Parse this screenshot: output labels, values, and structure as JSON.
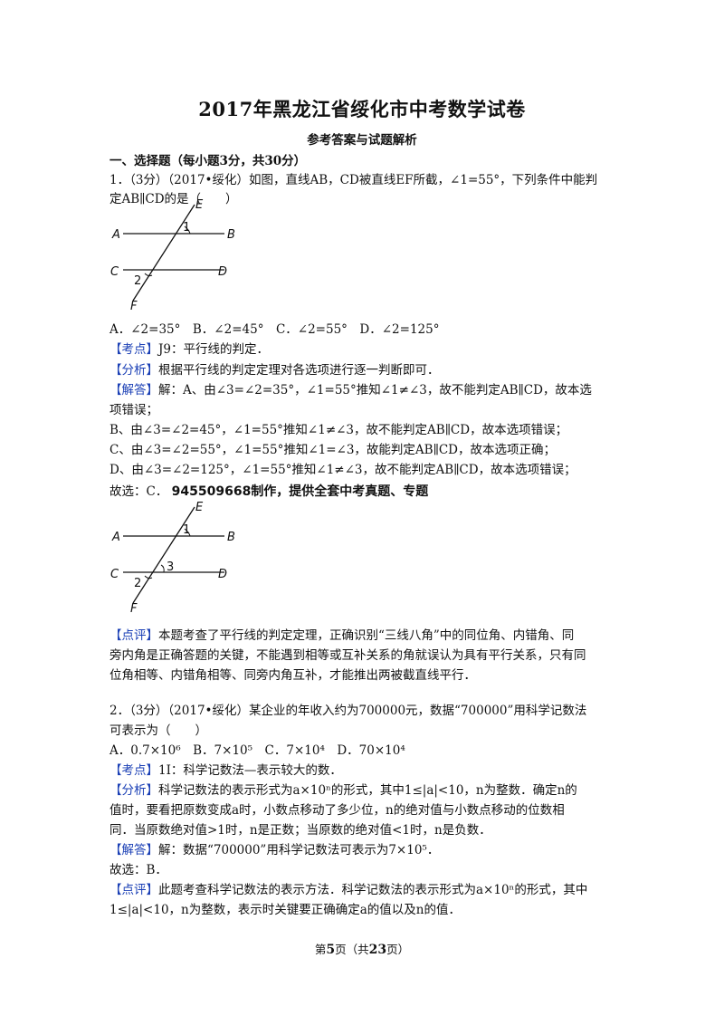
{
  "title": "2017年黑龙江省绥化市中考数学试卷",
  "subtitle": "参考答案与试题解析",
  "section1": "一、选择题（每小题3分，共30分）",
  "q1": {
    "stem_1": "1．（3分）（2017•绥化）如图，直线AB，CD被直线EF所截，∠1=55°，下列条件中能判",
    "stem_2": "定AB∥CD的是（　　）",
    "figure_labels": {
      "A": "A",
      "B": "B",
      "C": "C",
      "D": "D",
      "E": "E",
      "F": "F",
      "one": "1",
      "two": "2",
      "three": "3"
    },
    "options": "A．∠2=35°　B．∠2=45°　C．∠2=55°　D．∠2=125°",
    "kaodian_tag": "【考点】",
    "kaodian": "J9：平行线的判定．",
    "fenxi_tag": "【分析】",
    "fenxi": "根据平行线的判定定理对各选项进行逐一判断即可．",
    "jieda_tag": "【解答】",
    "jieda_1": "解：A、由∠3=∠2=35°，∠1=55°推知∠1≠∠3，故不能判定AB∥CD，故本选",
    "jieda_2": "项错误；",
    "jieda_3": "B、由∠3=∠2=45°，∠1=55°推知∠1≠∠3，故不能判定AB∥CD，故本选项错误；",
    "jieda_4": "C、由∠3=∠2=55°，∠1=55°推知∠1=∠3，故能判定AB∥CD，故本选项正确；",
    "jieda_5": "D、由∠3=∠2=125°，∠1=55°推知∠1≠∠3，故不能判定AB∥CD，故本选项错误；",
    "answer": "故选：C．",
    "watermark": "945509668制作，提供全套中考真题、专题",
    "dianping_tag": "【点评】",
    "dianping_1": "本题考查了平行线的判定定理，正确识别“三线八角”中的同位角、内错角、同",
    "dianping_2": "旁内角是正确答题的关键，不能遇到相等或互补关系的角就误认为具有平行关系，只有同",
    "dianping_3": "位角相等、内错角相等、同旁内角互补，才能推出两被截直线平行．"
  },
  "q2": {
    "stem_1": "2．（3分）（2017•绥化）某企业的年收入约为700000元，数据“700000”用科学记数法",
    "stem_2": "可表示为（　　）",
    "options": "A．0.7×10⁶　B．7×10⁵　C．7×10⁴　D．70×10⁴",
    "kaodian_tag": "【考点】",
    "kaodian": "1I：科学记数法—表示较大的数．",
    "fenxi_tag": "【分析】",
    "fenxi_1": "科学记数法的表示形式为a×10ⁿ的形式，其中1≤|a|<10，n为整数．确定n的",
    "fenxi_2": "值时，要看把原数变成a时，小数点移动了多少位，n的绝对值与小数点移动的位数相",
    "fenxi_3": "同．当原数绝对值>1时，n是正数；当原数的绝对值<1时，n是负数．",
    "jieda_tag": "【解答】",
    "jieda": "解：数据“700000”用科学记数法可表示为7×10⁵．",
    "answer": "故选：B．",
    "dianping_tag": "【点评】",
    "dianping_1": "此题考查科学记数法的表示方法．科学记数法的表示形式为a×10ⁿ的形式，其中",
    "dianping_2": "1≤|a|<10，n为整数，表示时关键要正确确定a的值以及n的值．"
  },
  "footer": {
    "pre": "第",
    "page": "5",
    "mid": "页（共",
    "total": "23",
    "post": "页）"
  }
}
